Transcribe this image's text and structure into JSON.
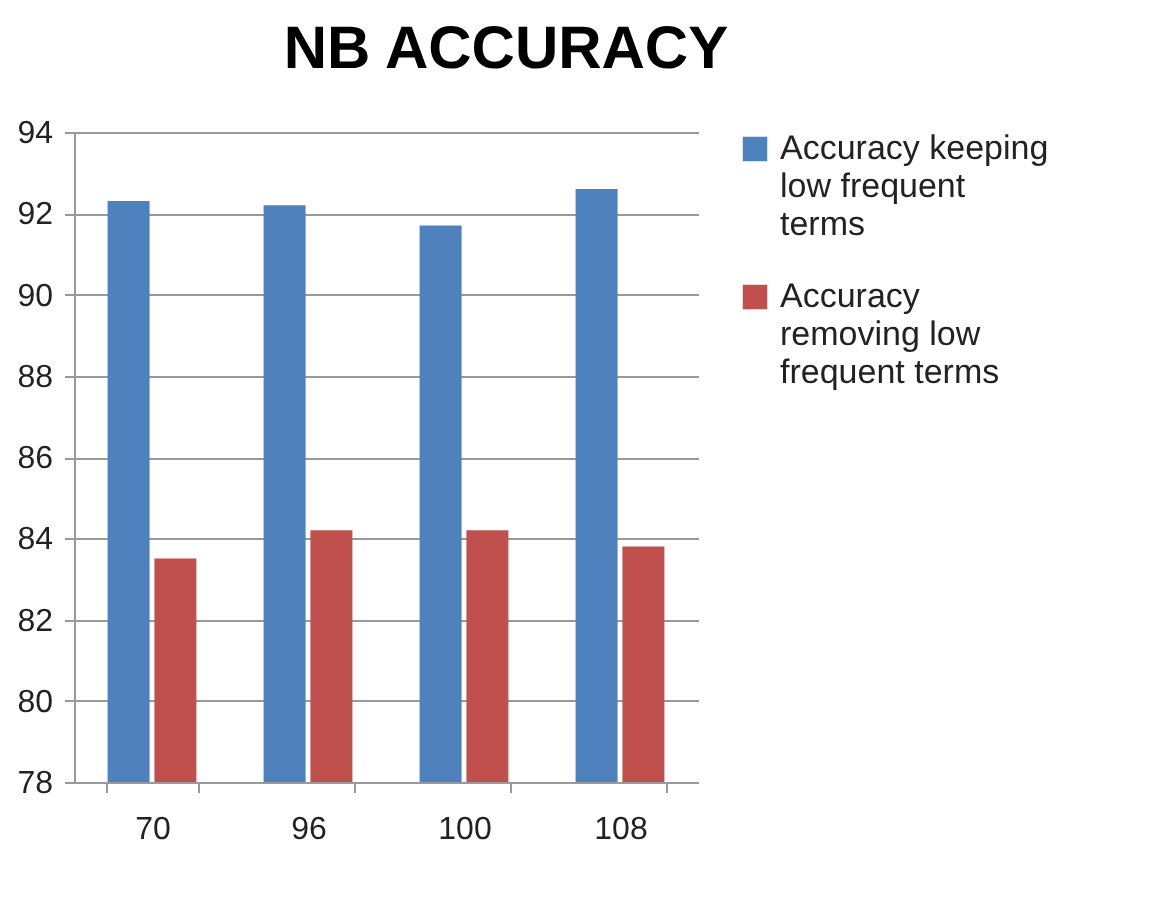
{
  "chart_data": {
    "type": "bar",
    "title": "NB ACCURACY",
    "categories": [
      "70",
      "96",
      "100",
      "108"
    ],
    "series": [
      {
        "name": "Accuracy keeping low frequent terms",
        "color": "#4f81bd",
        "values": [
          92.3,
          92.2,
          91.7,
          92.6
        ]
      },
      {
        "name": "Accuracy removing low frequent terms",
        "color": "#c0504d",
        "values": [
          83.5,
          84.2,
          84.2,
          83.8
        ]
      }
    ],
    "ylim": [
      78,
      94
    ],
    "yticks": [
      78,
      80,
      82,
      84,
      86,
      88,
      90,
      92,
      94
    ],
    "grid": "y",
    "legend": "right"
  }
}
